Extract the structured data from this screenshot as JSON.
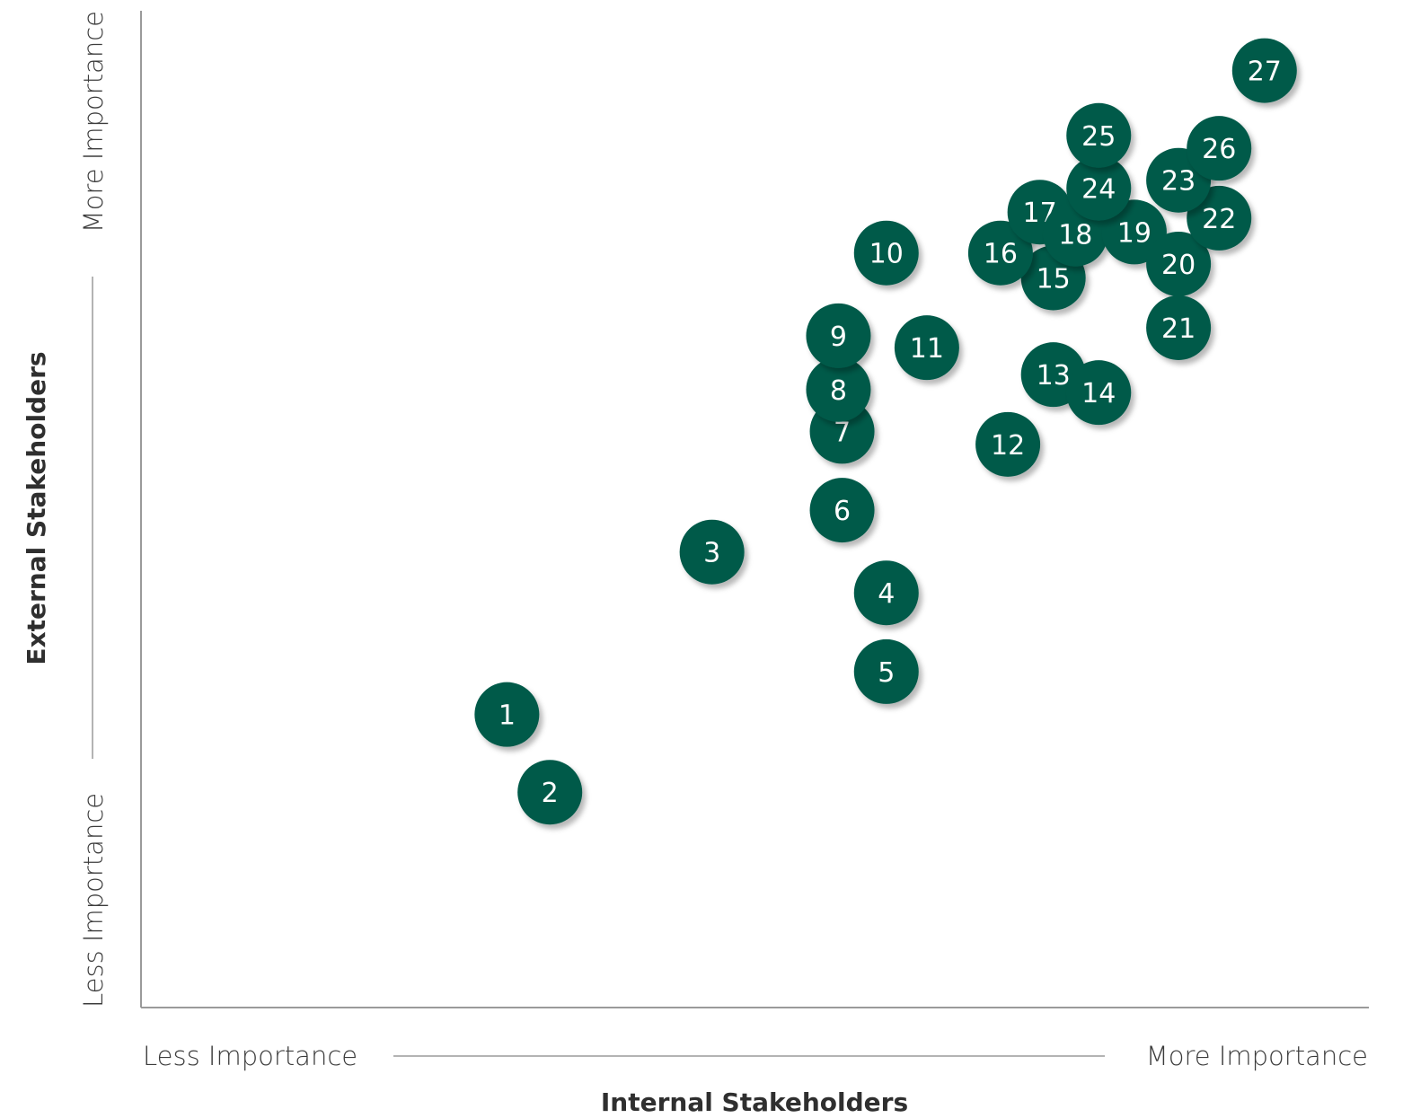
{
  "chart_data": {
    "type": "scatter",
    "title": "",
    "xlabel": "Internal Stakeholders",
    "ylabel": "External Stakeholders",
    "x_low_label": "Less Importance",
    "x_high_label": "More Importance",
    "y_low_label": "Less Importance",
    "y_high_label": "More Importance",
    "xlim": [
      0,
      1
    ],
    "ylim": [
      0,
      1
    ],
    "grid": false,
    "marker_color": "#005a4a",
    "points": [
      {
        "label": "1",
        "x": 0.298,
        "y": 0.294
      },
      {
        "label": "2",
        "x": 0.333,
        "y": 0.216
      },
      {
        "label": "3",
        "x": 0.465,
        "y": 0.457
      },
      {
        "label": "4",
        "x": 0.607,
        "y": 0.416
      },
      {
        "label": "5",
        "x": 0.607,
        "y": 0.337
      },
      {
        "label": "6",
        "x": 0.571,
        "y": 0.499
      },
      {
        "label": "7",
        "x": 0.571,
        "y": 0.578
      },
      {
        "label": "8",
        "x": 0.568,
        "y": 0.62
      },
      {
        "label": "9",
        "x": 0.568,
        "y": 0.674
      },
      {
        "label": "10",
        "x": 0.607,
        "y": 0.757
      },
      {
        "label": "11",
        "x": 0.64,
        "y": 0.662
      },
      {
        "label": "12",
        "x": 0.706,
        "y": 0.565
      },
      {
        "label": "13",
        "x": 0.743,
        "y": 0.635
      },
      {
        "label": "14",
        "x": 0.78,
        "y": 0.617
      },
      {
        "label": "15",
        "x": 0.743,
        "y": 0.732
      },
      {
        "label": "16",
        "x": 0.7,
        "y": 0.757
      },
      {
        "label": "17",
        "x": 0.732,
        "y": 0.798
      },
      {
        "label": "18",
        "x": 0.761,
        "y": 0.776
      },
      {
        "label": "19",
        "x": 0.809,
        "y": 0.778
      },
      {
        "label": "20",
        "x": 0.845,
        "y": 0.746
      },
      {
        "label": "21",
        "x": 0.845,
        "y": 0.682
      },
      {
        "label": "22",
        "x": 0.878,
        "y": 0.792
      },
      {
        "label": "23",
        "x": 0.845,
        "y": 0.83
      },
      {
        "label": "24",
        "x": 0.78,
        "y": 0.822
      },
      {
        "label": "25",
        "x": 0.78,
        "y": 0.875
      },
      {
        "label": "26",
        "x": 0.878,
        "y": 0.862
      },
      {
        "label": "27",
        "x": 0.915,
        "y": 0.94
      }
    ]
  }
}
